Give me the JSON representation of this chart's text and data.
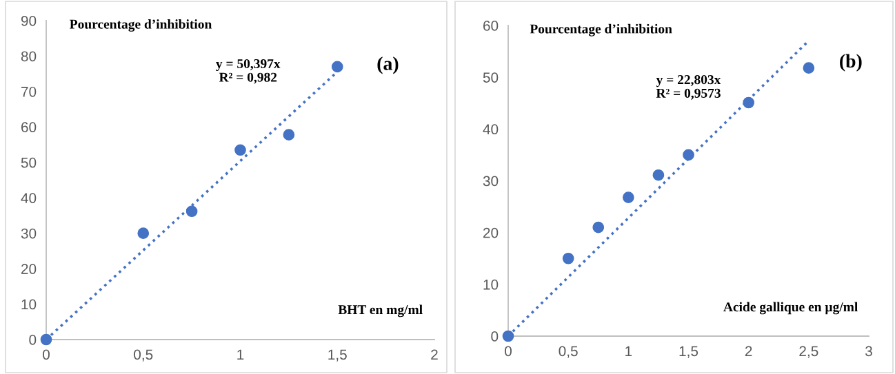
{
  "chart_data": [
    {
      "type": "scatter",
      "ylabel": "Pourcentage d’inhibition",
      "xlabel": "BHT en mg/ml",
      "annotations": [
        "y = 50,397x\nR² = 0,982",
        "(a)"
      ],
      "xlim": [
        0,
        2
      ],
      "xticks": [
        0,
        {
          "value": 0.5,
          "label": "0,5"
        },
        1,
        {
          "value": 1.5,
          "label": "1,5"
        },
        2
      ],
      "ylim": [
        0,
        90
      ],
      "yticks": [
        0,
        10,
        20,
        30,
        40,
        50,
        60,
        70,
        80,
        90
      ],
      "grid": false,
      "marker": "circle",
      "series": [
        {
          "color": "#4472c4",
          "x": [
            0,
            0.5,
            0.75,
            1,
            1.25,
            1.5
          ],
          "values": [
            0,
            30.0,
            36.2,
            53.5,
            57.8,
            77.0
          ]
        },
        {
          "type": "line",
          "line_style": "dotted",
          "marker": "none",
          "color": "#4472c4",
          "x": [
            0,
            1.52
          ],
          "values": [
            0,
            76.6
          ]
        }
      ]
    },
    {
      "type": "scatter",
      "ylabel": "Pourcentage d’inhibition",
      "xlabel": "Acide gallique en µg/ml",
      "annotations": [
        "y = 22,803x\nR² = 0,9573",
        "(b)"
      ],
      "xlim": [
        0,
        3
      ],
      "xticks": [
        0,
        {
          "value": 0.5,
          "label": "0,5"
        },
        1,
        {
          "value": 1.5,
          "label": "1,5"
        },
        2,
        {
          "value": 2.5,
          "label": "2,5"
        },
        3
      ],
      "ylim": [
        0,
        60
      ],
      "yticks": [
        0,
        10,
        20,
        30,
        40,
        50,
        60
      ],
      "grid": false,
      "marker": "circle",
      "series": [
        {
          "color": "#4472c4",
          "x": [
            0,
            0.5,
            0.75,
            1,
            1.25,
            1.5,
            2,
            2.5
          ],
          "values": [
            0,
            15.0,
            21.0,
            26.8,
            31.1,
            35.0,
            45.1,
            51.8
          ]
        },
        {
          "type": "line",
          "line_style": "dotted",
          "marker": "none",
          "color": "#4472c4",
          "x": [
            0,
            2.48
          ],
          "values": [
            0,
            56.6
          ]
        }
      ]
    }
  ]
}
